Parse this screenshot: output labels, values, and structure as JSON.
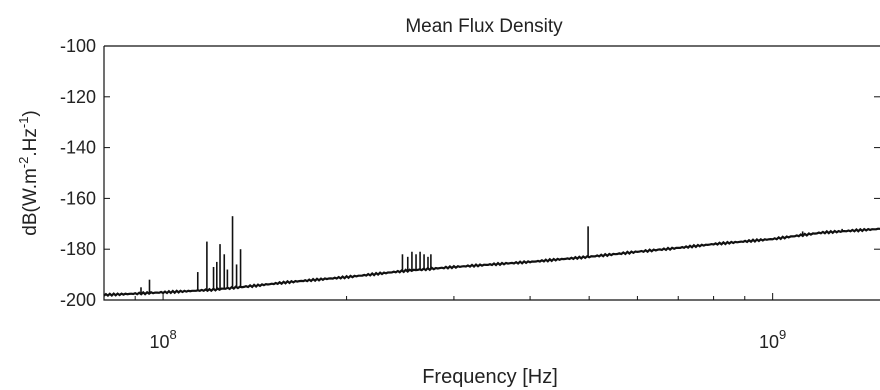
{
  "chart_data": {
    "type": "line",
    "title": "Mean Flux Density",
    "xlabel": "Frequency [Hz]",
    "ylabel_parts": {
      "base": "dB(W.m",
      "exp1": "-2",
      "mid": ".Hz",
      "exp2": "-1",
      "end": ")"
    },
    "x_scale": "log",
    "xlim": [
      80000000,
      1500000000
    ],
    "ylim": [
      -200,
      -100
    ],
    "x_ticks": [
      {
        "value": 100000000,
        "base": "10",
        "exp": "8"
      },
      {
        "value": 1000000000,
        "base": "10",
        "exp": "9"
      }
    ],
    "y_ticks": [
      {
        "value": -100,
        "label": "-100"
      },
      {
        "value": -120,
        "label": "-120"
      },
      {
        "value": -140,
        "label": "-140"
      },
      {
        "value": -160,
        "label": "-160"
      },
      {
        "value": -180,
        "label": "-180"
      },
      {
        "value": -200,
        "label": "-200"
      }
    ],
    "grid": false,
    "line_color": "#111111",
    "series": [
      {
        "x": [
          80000000,
          90000000,
          100000000,
          110000000,
          120000000,
          140000000,
          160000000,
          200000000,
          250000000,
          300000000,
          400000000,
          500000000,
          600000000,
          700000000,
          800000000,
          1000000000,
          1200000000,
          1500000000
        ],
        "y": [
          -198,
          -197.5,
          -197,
          -196.5,
          -196,
          -194.5,
          -193,
          -191,
          -188.5,
          -187,
          -185,
          -183,
          -181,
          -179.5,
          -178,
          -176,
          -173.5,
          -172
        ]
      }
    ],
    "spikes": [
      {
        "x": 92000000,
        "top": -195
      },
      {
        "x": 95000000,
        "top": -192
      },
      {
        "x": 114000000,
        "top": -189
      },
      {
        "x": 118000000,
        "top": -177
      },
      {
        "x": 121000000,
        "top": -187
      },
      {
        "x": 122500000,
        "top": -185
      },
      {
        "x": 124000000,
        "top": -178
      },
      {
        "x": 126000000,
        "top": -182
      },
      {
        "x": 127500000,
        "top": -188
      },
      {
        "x": 130000000,
        "top": -167
      },
      {
        "x": 132000000,
        "top": -186
      },
      {
        "x": 134000000,
        "top": -180
      },
      {
        "x": 247000000,
        "top": -182
      },
      {
        "x": 252000000,
        "top": -183
      },
      {
        "x": 256000000,
        "top": -181
      },
      {
        "x": 260000000,
        "top": -182
      },
      {
        "x": 264000000,
        "top": -181
      },
      {
        "x": 268000000,
        "top": -182
      },
      {
        "x": 272000000,
        "top": -183
      },
      {
        "x": 275000000,
        "top": -182
      },
      {
        "x": 498000000,
        "top": -171
      },
      {
        "x": 1120000000,
        "top": -173
      },
      {
        "x": 1300000000,
        "top": -172
      }
    ]
  }
}
